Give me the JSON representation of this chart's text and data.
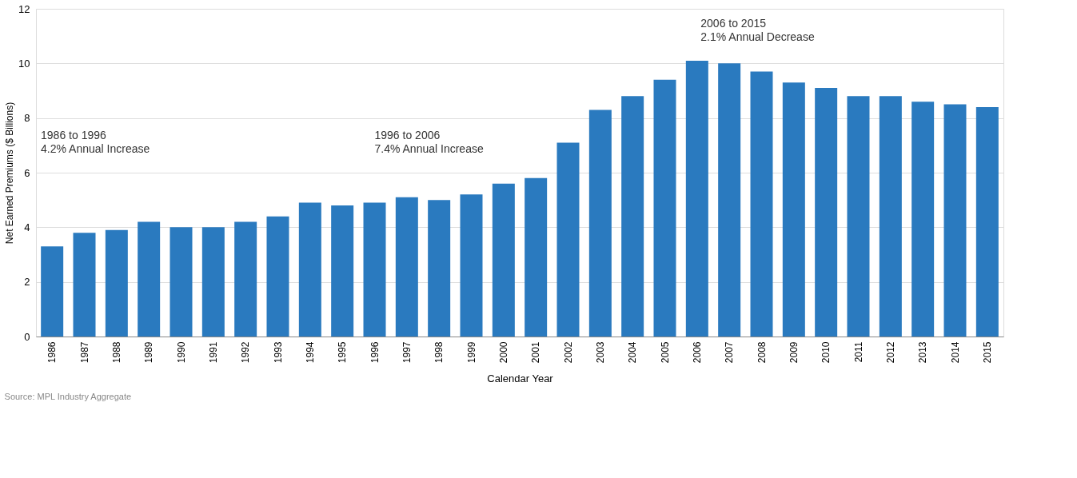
{
  "chart_data": {
    "type": "bar",
    "xlabel": "Calendar Year",
    "ylabel": "Net Earned Premiums ($ Billions)",
    "categories": [
      "1986",
      "1987",
      "1988",
      "1989",
      "1990",
      "1991",
      "1992",
      "1993",
      "1994",
      "1995",
      "1996",
      "1997",
      "1998",
      "1999",
      "2000",
      "2001",
      "2002",
      "2003",
      "2004",
      "2005",
      "2006",
      "2007",
      "2008",
      "2009",
      "2010",
      "2011",
      "2012",
      "2013",
      "2014",
      "2015"
    ],
    "values": [
      3.3,
      3.8,
      3.9,
      4.2,
      4.0,
      4.0,
      4.2,
      4.4,
      4.9,
      4.8,
      4.9,
      5.1,
      5.0,
      5.2,
      5.6,
      5.8,
      7.1,
      8.3,
      8.8,
      9.4,
      10.1,
      10.0,
      9.7,
      9.3,
      9.1,
      8.8,
      8.8,
      8.6,
      8.5,
      8.4
    ],
    "color": "#2a7abf",
    "ylim": [
      0,
      12
    ],
    "yticks": [
      0,
      2,
      4,
      6,
      8,
      10,
      12
    ],
    "grid": "y",
    "annotations": [
      "1986 to 1996\n4.2% Annual Increase",
      "1996 to 2006\n7.4% Annual Increase",
      "2006 to 2015\n2.1% Annual Decrease",
      "Source: MPL Industry Aggregate"
    ]
  }
}
